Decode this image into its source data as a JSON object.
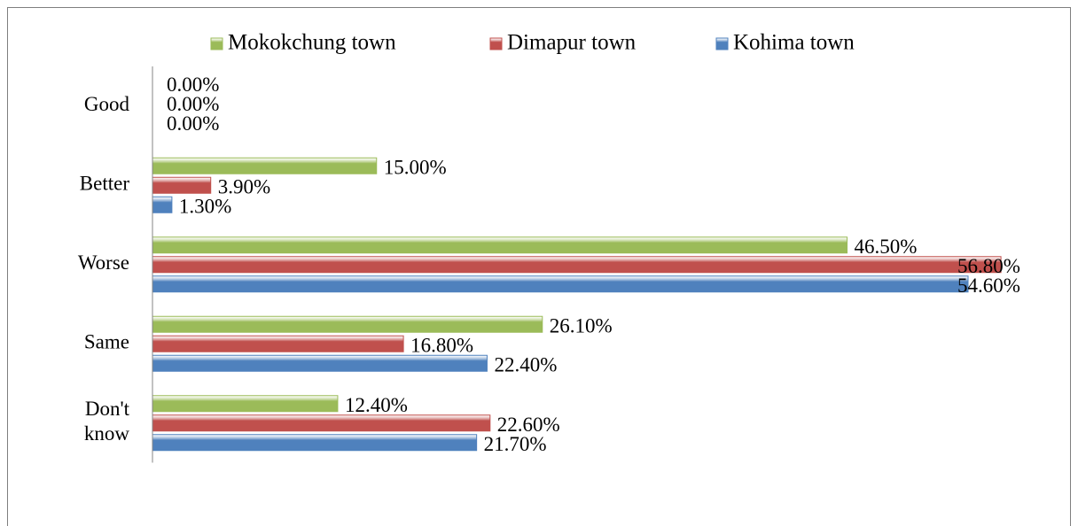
{
  "chart_data": {
    "type": "bar",
    "orientation": "horizontal",
    "categories": [
      "Good",
      "Better",
      "Worse",
      "Same",
      "Don't know"
    ],
    "series": [
      {
        "name": "Mokokchung town",
        "color": "#9bbb59",
        "values": [
          0,
          15,
          46.5,
          26.1,
          12.4
        ],
        "value_labels": [
          "0.00%",
          "15.00%",
          "46.50%",
          "26.10%",
          "12.40%"
        ]
      },
      {
        "name": "Dimapur town",
        "color": "#c0504d",
        "values": [
          0,
          3.9,
          56.8,
          16.8,
          22.6
        ],
        "value_labels": [
          "0.00%",
          "3.90%",
          "56.80%",
          "16.80%",
          "22.60%"
        ]
      },
      {
        "name": "Kohima town",
        "color": "#4f81bd",
        "values": [
          0,
          1.3,
          54.6,
          22.4,
          21.7
        ],
        "value_labels": [
          "0.00%",
          "1.30%",
          "54.60%",
          "22.40%",
          "21.70%"
        ]
      }
    ],
    "xlim": [
      0,
      60
    ],
    "legend": "top"
  }
}
